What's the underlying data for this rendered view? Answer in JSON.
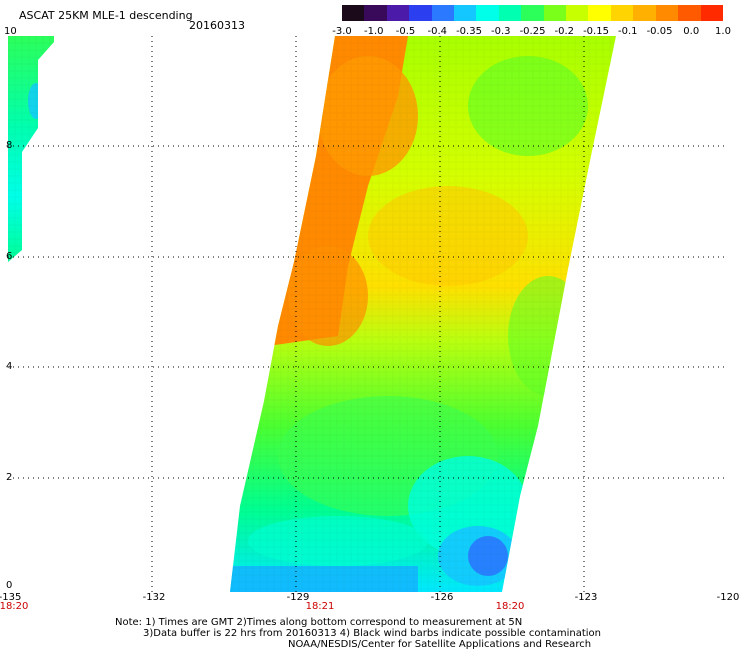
{
  "header": {
    "title": "ASCAT 25KM MLE-1 descending",
    "date": "20160313"
  },
  "colorbar": {
    "labels": [
      "-3.0",
      "-1.0",
      "-0.5",
      "-0.4",
      "-0.35",
      "-0.3",
      "-0.25",
      "-0.2",
      "-0.15",
      "-0.1",
      "-0.05",
      "0.0",
      "1.0"
    ],
    "colors": [
      "#1a0a1a",
      "#3a0a5a",
      "#4b1aa8",
      "#2b3ff0",
      "#2a79ff",
      "#14c8ff",
      "#00ffe8",
      "#00ffb0",
      "#2cff5a",
      "#7aff1a",
      "#c8ff00",
      "#ffff00",
      "#ffd400",
      "#ffb000",
      "#ff8a00",
      "#ff5a00",
      "#ff2a00"
    ]
  },
  "map": {
    "y_ticks": [
      "10",
      "8",
      "6",
      "4",
      "2",
      "0"
    ],
    "x_ticks": [
      "-135",
      "-132",
      "-129",
      "-126",
      "-123",
      "-120"
    ],
    "times": [
      "18:20",
      "18:21",
      "18:20"
    ],
    "background": "#ffffff",
    "grid_color": "#000000"
  },
  "notes": {
    "line1": "Note: 1) Times are GMT 2)Times along bottom correspond to measurement at 5N",
    "line2": "3)Data buffer is 22 hrs from 20160313 4) Black wind barbs indicate possible contamination",
    "line3": "NOAA/NESDIS/Center for Satellite Applications and Research"
  }
}
